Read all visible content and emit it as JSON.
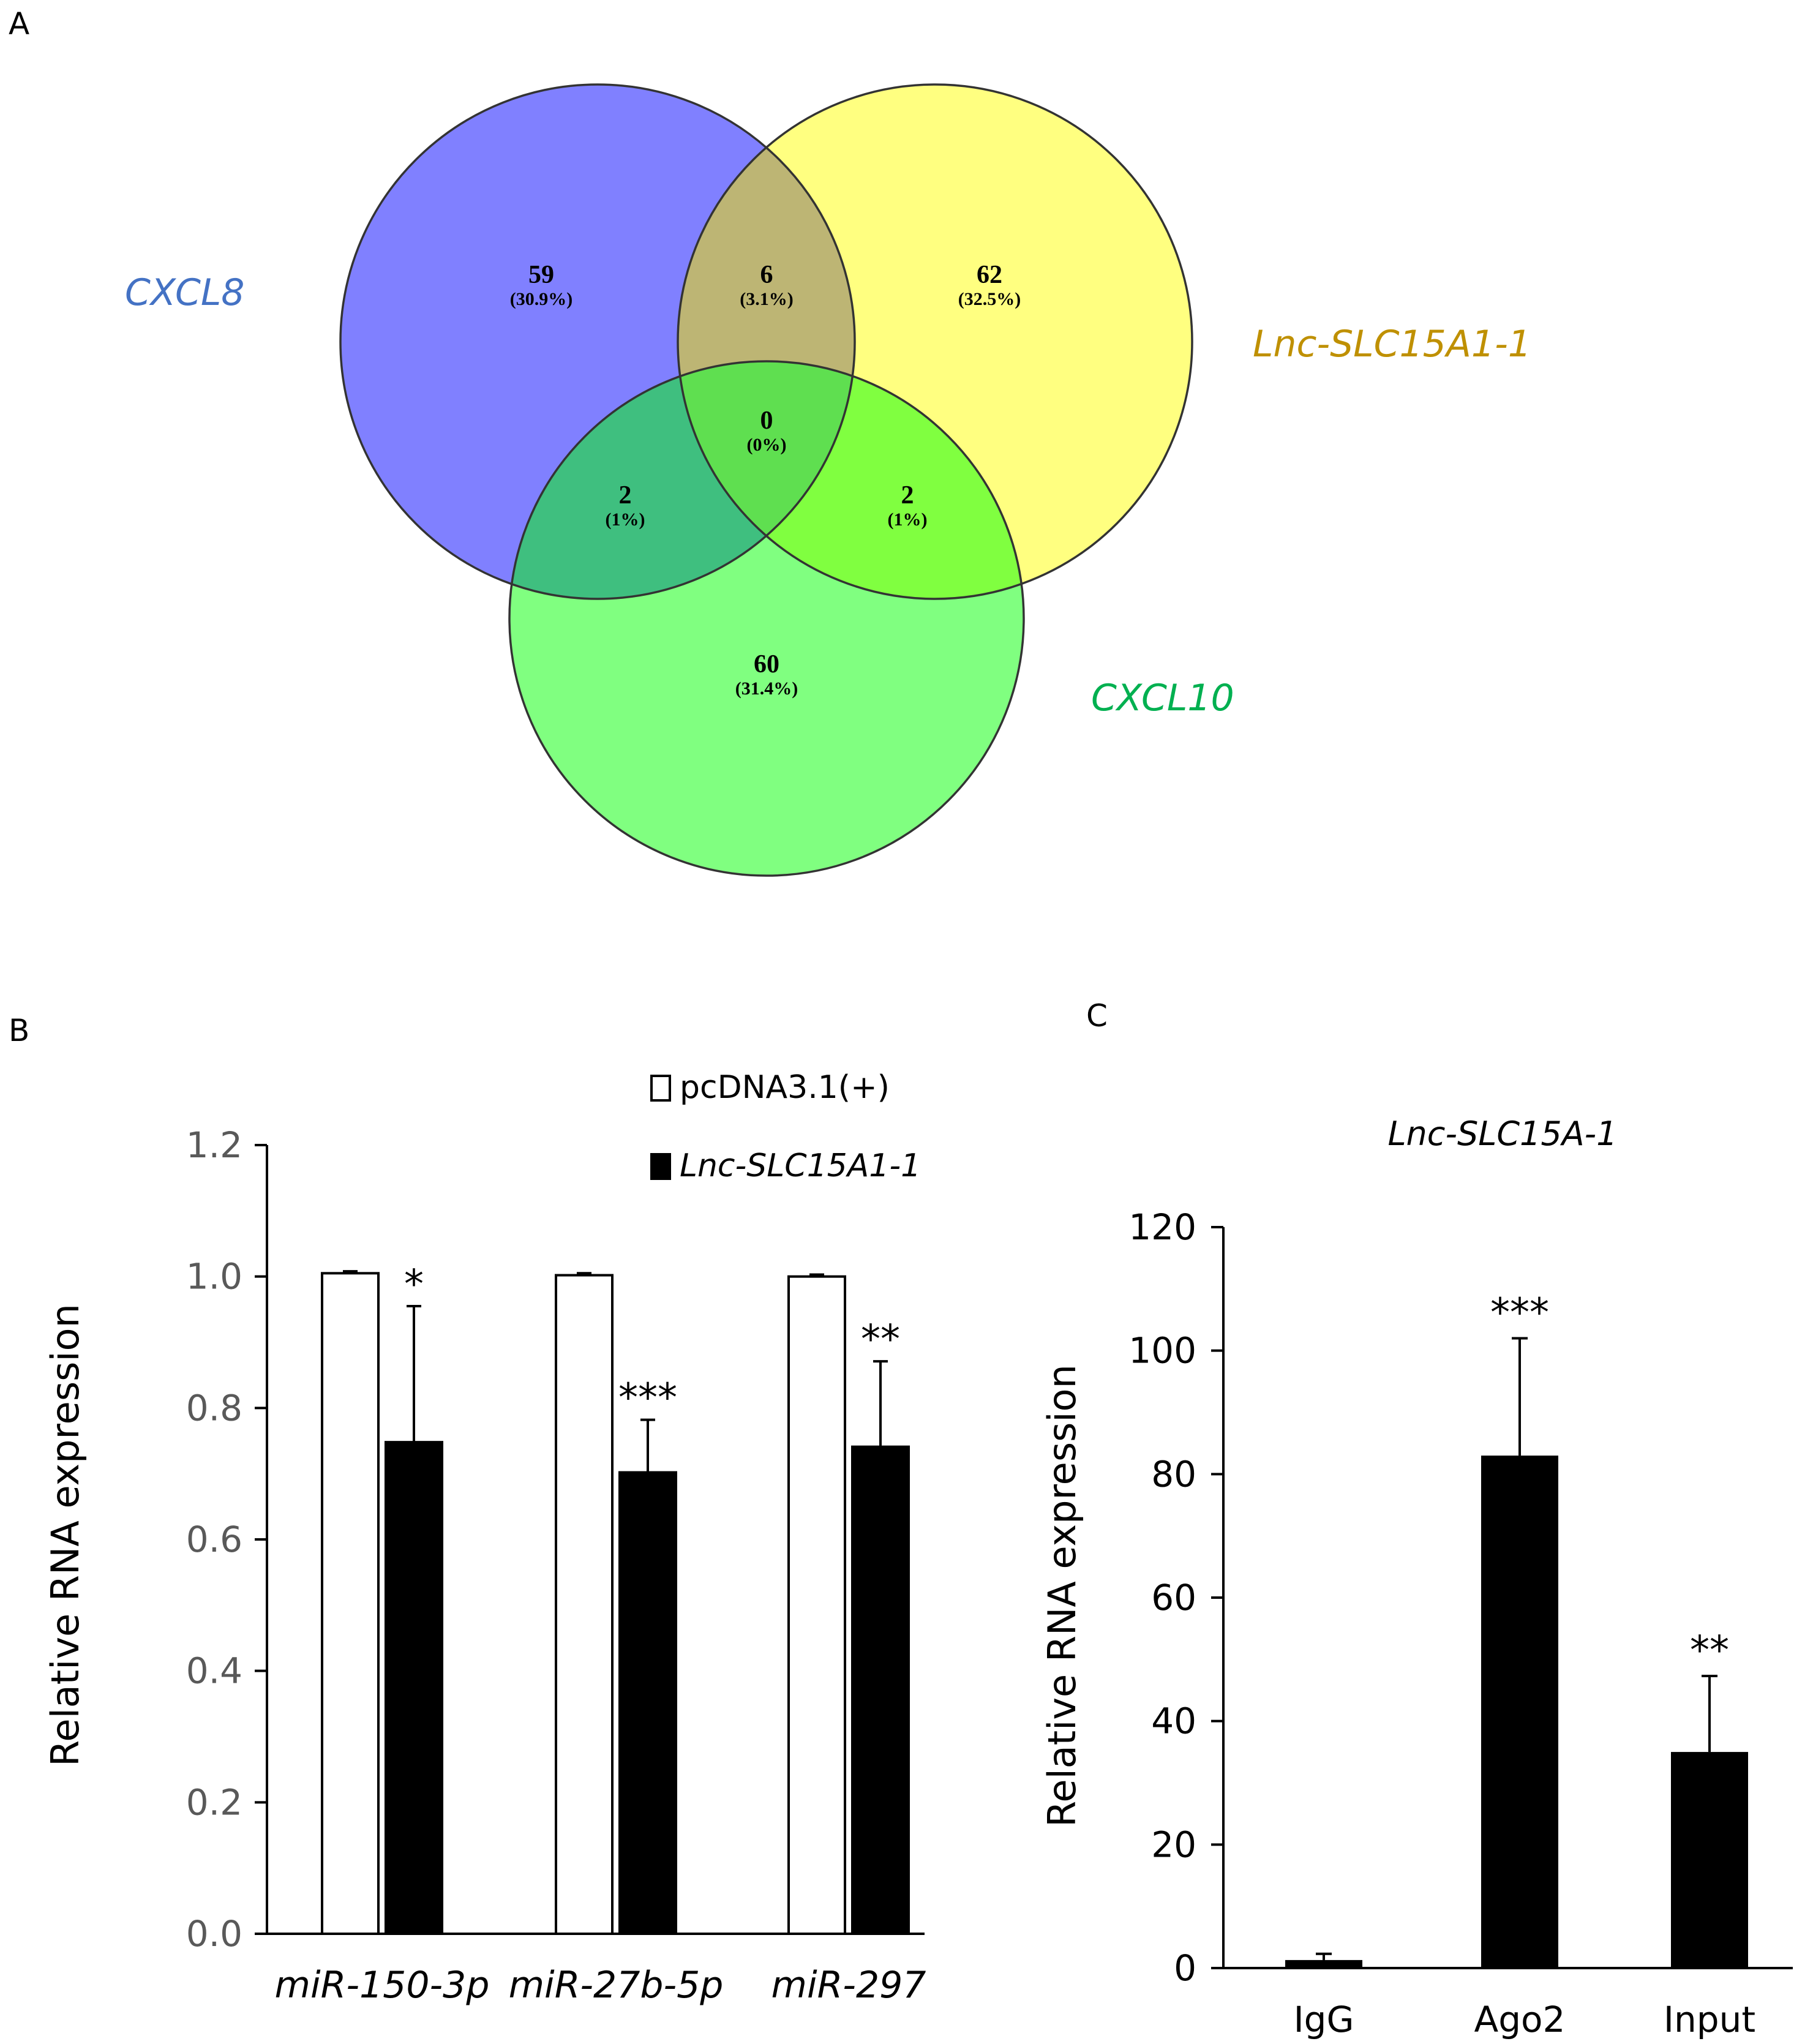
{
  "panel_labels": {
    "a": "A",
    "b": "B",
    "c": "C"
  },
  "chart_data": [
    {
      "type": "venn",
      "panel": "A",
      "sets": [
        {
          "name": "CXCL8",
          "color": "#8080FF",
          "label_color": "#4472C4"
        },
        {
          "name": "Lnc-SLC15A1-1",
          "color": "#FFFF80",
          "label_color": "#BF9000"
        },
        {
          "name": "CXCL10",
          "color": "#80FF80",
          "label_color": "#00B050"
        }
      ],
      "regions": [
        {
          "sets": [
            "CXCL8"
          ],
          "count": "59",
          "percent": "(30.9%)"
        },
        {
          "sets": [
            "CXCL8",
            "Lnc-SLC15A1-1"
          ],
          "count": "6",
          "percent": "(3.1%)"
        },
        {
          "sets": [
            "Lnc-SLC15A1-1"
          ],
          "count": "62",
          "percent": "(32.5%)"
        },
        {
          "sets": [
            "CXCL8",
            "Lnc-SLC15A1-1",
            "CXCL10"
          ],
          "count": "0",
          "percent": "(0%)"
        },
        {
          "sets": [
            "CXCL8",
            "CXCL10"
          ],
          "count": "2",
          "percent": "(1%)"
        },
        {
          "sets": [
            "Lnc-SLC15A1-1",
            "CXCL10"
          ],
          "count": "2",
          "percent": "(1%)"
        },
        {
          "sets": [
            "CXCL10"
          ],
          "count": "60",
          "percent": "(31.4%)"
        }
      ],
      "region_colors": {
        "ab": "#BDB574",
        "c_only_ac": "#3FBF7F",
        "bc": "#80FF40",
        "abc": "#5FDF50"
      }
    },
    {
      "type": "bar",
      "panel": "B",
      "title": "",
      "xlabel": "",
      "ylabel": "Relative RNA expression",
      "ylim": [
        0,
        1.2
      ],
      "yticks": [
        "0.0",
        "0.2",
        "0.4",
        "0.6",
        "0.8",
        "1.0",
        "1.2"
      ],
      "categories": [
        "miR-150-3p",
        "miR-27b-5p",
        "miR-297"
      ],
      "series": [
        {
          "name": "pcDNA3.1(+)",
          "fill": "#FFFFFF",
          "values": [
            1.005,
            1.002,
            1.0
          ],
          "errors": [
            0.003,
            0.003,
            0.003
          ],
          "significance": [
            "",
            "",
            ""
          ]
        },
        {
          "name": "Lnc-SLC15A1-1",
          "fill": "#000000",
          "values": [
            0.748,
            0.702,
            0.741
          ],
          "errors": [
            0.207,
            0.08,
            0.13
          ],
          "significance": [
            "*",
            "***",
            "**"
          ]
        }
      ],
      "legend": [
        {
          "label": "pcDNA3.1(+)",
          "italic": false
        },
        {
          "label": "Lnc-SLC15A1-1",
          "italic": true
        }
      ]
    },
    {
      "type": "bar",
      "panel": "C",
      "title": "Lnc-SLC15A-1",
      "xlabel": "",
      "ylabel": "Relative RNA expression",
      "ylim": [
        0,
        120
      ],
      "yticks": [
        "0",
        "20",
        "40",
        "60",
        "80",
        "100",
        "120"
      ],
      "categories": [
        "IgG",
        "Ago2",
        "Input"
      ],
      "values": [
        1.3,
        83,
        35
      ],
      "errors": [
        1.0,
        19,
        12.3
      ],
      "significance": [
        "",
        "***",
        "**"
      ],
      "fill": "#000000"
    }
  ]
}
